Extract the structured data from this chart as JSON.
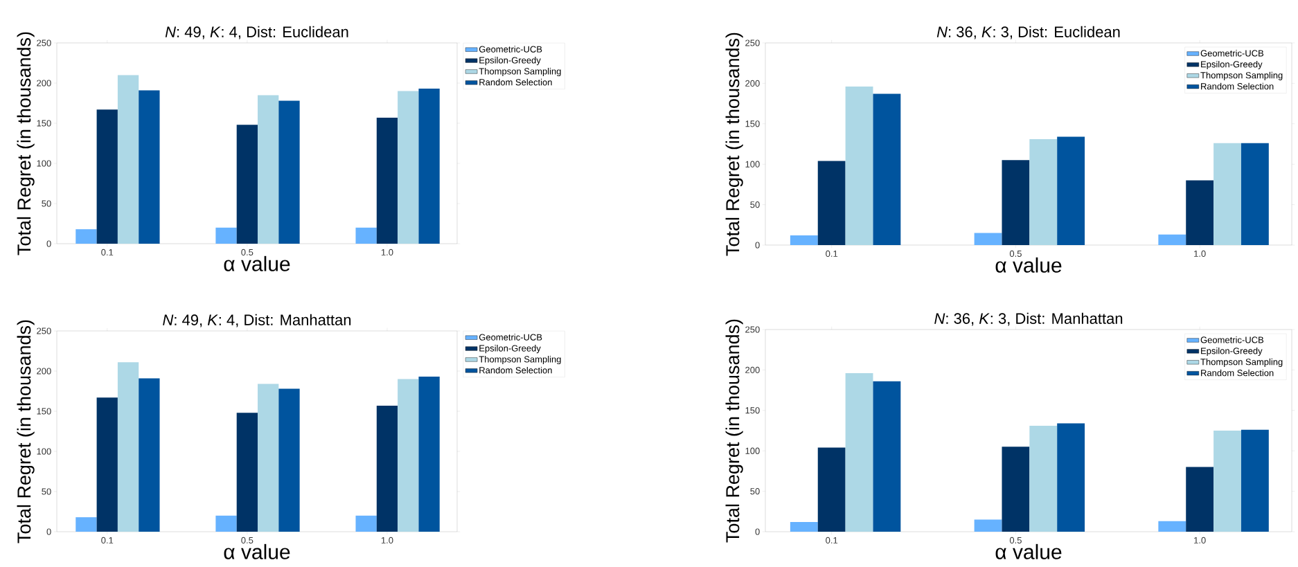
{
  "chart_data": [
    {
      "type": "bar",
      "title": "*N*: 49, *K*: 4, Dist: Euclidean",
      "xlabel": "α value",
      "ylabel": "Total Regret (in thousands)",
      "categories": [
        "0.1",
        "0.5",
        "1.0"
      ],
      "ylim": [
        0,
        250
      ],
      "yticks": [
        0,
        50,
        100,
        150,
        200,
        250
      ],
      "legend": "right",
      "series": [
        {
          "name": "Geometric-UCB",
          "color": "#66b2ff",
          "values": [
            18,
            20,
            20
          ]
        },
        {
          "name": "Epsilon-Greedy",
          "color": "#003366",
          "values": [
            167,
            148,
            157
          ]
        },
        {
          "name": "Thompson Sampling",
          "color": "#add8e6",
          "values": [
            210,
            185,
            190
          ]
        },
        {
          "name": "Random Selection",
          "color": "#00549e",
          "values": [
            191,
            178,
            193
          ]
        }
      ]
    },
    {
      "type": "bar",
      "title": "*N*: 36, *K*: 3, Dist: Euclidean",
      "xlabel": "α value",
      "ylabel": "Total Regret (in thousands)",
      "categories": [
        "0.1",
        "0.5",
        "1.0"
      ],
      "ylim": [
        0,
        250
      ],
      "yticks": [
        0,
        50,
        100,
        150,
        200,
        250
      ],
      "legend": "top right",
      "series": [
        {
          "name": "Geometric-UCB",
          "color": "#66b2ff",
          "values": [
            12,
            15,
            13
          ]
        },
        {
          "name": "Epsilon-Greedy",
          "color": "#003366",
          "values": [
            104,
            105,
            80
          ]
        },
        {
          "name": "Thompson Sampling",
          "color": "#add8e6",
          "values": [
            196,
            131,
            126
          ]
        },
        {
          "name": "Random Selection",
          "color": "#00549e",
          "values": [
            187,
            134,
            126
          ]
        }
      ]
    },
    {
      "type": "bar",
      "title": "*N*: 49, *K*: 4, Dist: Manhattan",
      "xlabel": "α value",
      "ylabel": "Total Regret (in thousands)",
      "categories": [
        "0.1",
        "0.5",
        "1.0"
      ],
      "ylim": [
        0,
        250
      ],
      "yticks": [
        0,
        50,
        100,
        150,
        200,
        250
      ],
      "legend": "right",
      "series": [
        {
          "name": "Geometric-UCB",
          "color": "#66b2ff",
          "values": [
            18,
            20,
            20
          ]
        },
        {
          "name": "Epsilon-Greedy",
          "color": "#003366",
          "values": [
            167,
            148,
            157
          ]
        },
        {
          "name": "Thompson Sampling",
          "color": "#add8e6",
          "values": [
            211,
            184,
            190
          ]
        },
        {
          "name": "Random Selection",
          "color": "#00549e",
          "values": [
            191,
            178,
            193
          ]
        }
      ]
    },
    {
      "type": "bar",
      "title": "*N*: 36, *K*: 3, Dist: Manhattan",
      "xlabel": "α value",
      "ylabel": "Total Regret (in thousands)",
      "categories": [
        "0.1",
        "0.5",
        "1.0"
      ],
      "ylim": [
        0,
        250
      ],
      "yticks": [
        0,
        50,
        100,
        150,
        200,
        250
      ],
      "legend": "top right",
      "series": [
        {
          "name": "Geometric-UCB",
          "color": "#66b2ff",
          "values": [
            12,
            15,
            13
          ]
        },
        {
          "name": "Epsilon-Greedy",
          "color": "#003366",
          "values": [
            104,
            105,
            80
          ]
        },
        {
          "name": "Thompson Sampling",
          "color": "#add8e6",
          "values": [
            196,
            131,
            125
          ]
        },
        {
          "name": "Random Selection",
          "color": "#00549e",
          "values": [
            186,
            134,
            126
          ]
        }
      ]
    }
  ]
}
